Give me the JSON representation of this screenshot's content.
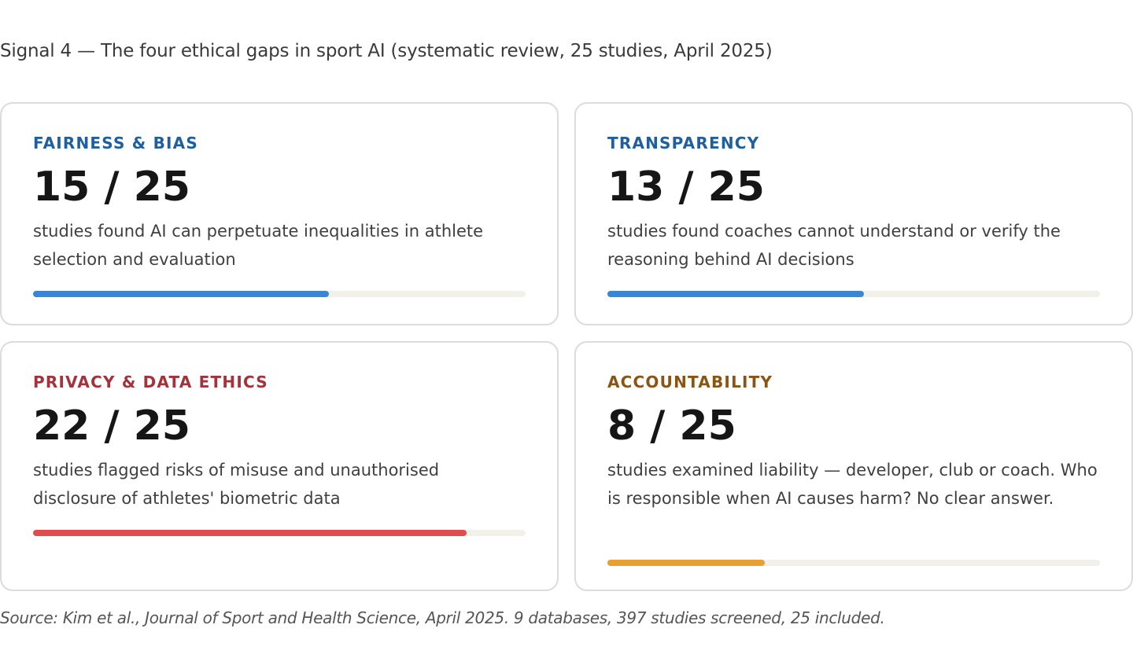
{
  "header": {
    "title": "Signal 4 — The four ethical gaps in sport AI (systematic review, 25 studies, April 2025)"
  },
  "cards": [
    {
      "label": "FAIRNESS & BIAS",
      "score": "15 / 25",
      "value": 15,
      "total": 25,
      "description": "studies found AI can perpetuate inequalities in athlete selection and evaluation",
      "label_color": "#1f5f9e",
      "bar_color": "#3a86d6"
    },
    {
      "label": "TRANSPARENCY",
      "score": "13 / 25",
      "value": 13,
      "total": 25,
      "description": "studies found coaches cannot understand or verify the reasoning behind AI decisions",
      "label_color": "#1f5f9e",
      "bar_color": "#3a86d6"
    },
    {
      "label": "PRIVACY & DATA ETHICS",
      "score": "22 / 25",
      "value": 22,
      "total": 25,
      "description": "studies flagged risks of misuse and unauthorised disclosure of athletes' biometric data",
      "label_color": "#a3323a",
      "bar_color": "#de4e4e"
    },
    {
      "label": "ACCOUNTABILITY",
      "score": "8 / 25",
      "value": 8,
      "total": 25,
      "description": "studies examined liability — developer, club or coach. Who is responsible when AI causes harm? No clear answer.",
      "label_color": "#8a5512",
      "bar_color": "#e9a032"
    }
  ],
  "footer": {
    "source": "Source: Kim et al., Journal of Sport and Health Science, April 2025. 9 databases, 397 studies screened, 25 included."
  }
}
